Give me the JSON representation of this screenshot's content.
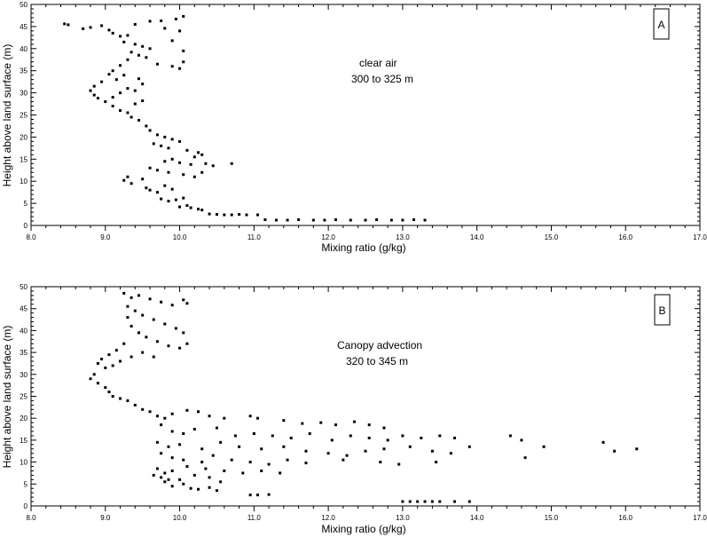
{
  "chart_data": [
    {
      "type": "scatter",
      "panel_label": "A",
      "annotation_lines": [
        "clear air",
        "300 to 325 m"
      ],
      "xlabel": "Mixing ratio (g/kg)",
      "ylabel": "Height above land surface (m)",
      "xlim": [
        8.0,
        17.0
      ],
      "ylim": [
        0,
        50
      ],
      "x_ticks": [
        "8.0",
        "9.0",
        "10.0",
        "11.0",
        "12.0",
        "13.0",
        "14.0",
        "15.0",
        "16.0",
        "17.0"
      ],
      "y_ticks": [
        "0",
        "5",
        "10",
        "15",
        "20",
        "25",
        "30",
        "35",
        "40",
        "45",
        "50"
      ],
      "series": [
        {
          "color": "#000000",
          "points": [
            [
              8.45,
              45.6
            ],
            [
              8.5,
              45.4
            ],
            [
              8.7,
              44.5
            ],
            [
              8.8,
              44.8
            ],
            [
              8.95,
              45.2
            ],
            [
              9.05,
              44.2
            ],
            [
              9.1,
              43.5
            ],
            [
              9.2,
              42.8
            ],
            [
              9.3,
              43.0
            ],
            [
              9.4,
              45.5
            ],
            [
              9.6,
              46.2
            ],
            [
              9.8,
              44.6
            ],
            [
              10.0,
              44.0
            ],
            [
              10.05,
              47.3
            ],
            [
              9.95,
              46.7
            ],
            [
              9.75,
              46.3
            ],
            [
              9.25,
              41.5
            ],
            [
              9.4,
              41.0
            ],
            [
              9.5,
              40.5
            ],
            [
              9.6,
              40.0
            ],
            [
              9.9,
              41.8
            ],
            [
              10.05,
              39.5
            ],
            [
              9.35,
              39.2
            ],
            [
              9.45,
              38.5
            ],
            [
              9.55,
              38.0
            ],
            [
              9.3,
              37.5
            ],
            [
              9.7,
              36.5
            ],
            [
              9.9,
              36.0
            ],
            [
              10.0,
              35.5
            ],
            [
              10.05,
              37.0
            ],
            [
              9.2,
              36.2
            ],
            [
              9.1,
              35.0
            ],
            [
              9.05,
              34.2
            ],
            [
              9.25,
              34.0
            ],
            [
              9.45,
              33.2
            ],
            [
              9.5,
              32.0
            ],
            [
              9.15,
              33.0
            ],
            [
              8.95,
              32.5
            ],
            [
              8.85,
              31.5
            ],
            [
              8.8,
              30.5
            ],
            [
              8.85,
              29.5
            ],
            [
              8.9,
              28.8
            ],
            [
              9.0,
              28.0
            ],
            [
              9.1,
              29.0
            ],
            [
              9.2,
              30.0
            ],
            [
              9.3,
              31.0
            ],
            [
              9.4,
              30.5
            ],
            [
              9.1,
              27.0
            ],
            [
              9.2,
              26.0
            ],
            [
              9.3,
              25.5
            ],
            [
              9.4,
              27.5
            ],
            [
              9.5,
              28.2
            ],
            [
              9.35,
              24.5
            ],
            [
              9.45,
              23.8
            ],
            [
              9.55,
              22.5
            ],
            [
              9.6,
              21.5
            ],
            [
              9.7,
              20.5
            ],
            [
              9.8,
              20.0
            ],
            [
              9.9,
              19.5
            ],
            [
              10.0,
              19.0
            ],
            [
              9.65,
              18.5
            ],
            [
              9.75,
              18.0
            ],
            [
              9.85,
              17.5
            ],
            [
              10.1,
              17.0
            ],
            [
              10.25,
              16.5
            ],
            [
              10.3,
              16.0
            ],
            [
              10.2,
              15.5
            ],
            [
              9.9,
              15.0
            ],
            [
              9.8,
              14.5
            ],
            [
              10.0,
              14.2
            ],
            [
              10.15,
              13.8
            ],
            [
              10.35,
              14.0
            ],
            [
              10.45,
              13.5
            ],
            [
              10.7,
              14.0
            ],
            [
              9.6,
              13.0
            ],
            [
              9.7,
              12.5
            ],
            [
              9.85,
              12.0
            ],
            [
              10.05,
              11.5
            ],
            [
              10.2,
              11.0
            ],
            [
              10.3,
              12.0
            ],
            [
              9.3,
              11.0
            ],
            [
              9.25,
              10.2
            ],
            [
              9.35,
              9.5
            ],
            [
              9.5,
              10.5
            ],
            [
              9.55,
              8.5
            ],
            [
              9.6,
              8.0
            ],
            [
              9.7,
              7.5
            ],
            [
              9.8,
              9.0
            ],
            [
              9.9,
              8.2
            ],
            [
              9.75,
              6.0
            ],
            [
              9.85,
              5.5
            ],
            [
              9.95,
              5.8
            ],
            [
              10.05,
              6.2
            ],
            [
              10.1,
              4.5
            ],
            [
              10.0,
              4.2
            ],
            [
              10.15,
              4.0
            ],
            [
              10.25,
              3.7
            ],
            [
              10.3,
              3.5
            ],
            [
              10.4,
              2.6
            ],
            [
              10.5,
              2.5
            ],
            [
              10.6,
              2.4
            ],
            [
              10.7,
              2.4
            ],
            [
              10.8,
              2.5
            ],
            [
              10.9,
              2.4
            ],
            [
              11.05,
              2.4
            ],
            [
              11.15,
              1.3
            ],
            [
              11.3,
              1.2
            ],
            [
              11.45,
              1.2
            ],
            [
              11.6,
              1.3
            ],
            [
              11.8,
              1.2
            ],
            [
              11.95,
              1.2
            ],
            [
              12.1,
              1.3
            ],
            [
              12.3,
              1.2
            ],
            [
              12.5,
              1.2
            ],
            [
              12.65,
              1.3
            ],
            [
              12.85,
              1.2
            ],
            [
              13.0,
              1.2
            ],
            [
              13.15,
              1.3
            ],
            [
              13.3,
              1.2
            ]
          ]
        }
      ]
    },
    {
      "type": "scatter",
      "panel_label": "B",
      "annotation_lines": [
        "Canopy advection",
        "320 to 345 m"
      ],
      "xlabel": "Mixing ratio (g/kg)",
      "ylabel": "Height above land surface (m)",
      "xlim": [
        8.0,
        17.0
      ],
      "ylim": [
        0,
        50
      ],
      "x_ticks": [
        "8.0",
        "9.0",
        "10.0",
        "11.0",
        "12.0",
        "13.0",
        "14.0",
        "15.0",
        "16.0",
        "17.0"
      ],
      "y_ticks": [
        "0",
        "5",
        "10",
        "15",
        "20",
        "25",
        "30",
        "35",
        "40",
        "45",
        "50"
      ],
      "series": [
        {
          "color": "#000000",
          "points": [
            [
              9.25,
              48.5
            ],
            [
              9.35,
              47.5
            ],
            [
              9.45,
              48.0
            ],
            [
              9.6,
              47.2
            ],
            [
              9.75,
              46.5
            ],
            [
              9.9,
              45.8
            ],
            [
              10.05,
              47.0
            ],
            [
              10.1,
              46.2
            ],
            [
              9.3,
              45.5
            ],
            [
              9.4,
              44.5
            ],
            [
              9.5,
              43.5
            ],
            [
              9.65,
              42.5
            ],
            [
              9.8,
              41.5
            ],
            [
              9.95,
              40.5
            ],
            [
              10.05,
              39.5
            ],
            [
              9.3,
              43.0
            ],
            [
              9.35,
              41.0
            ],
            [
              9.45,
              39.5
            ],
            [
              9.55,
              38.5
            ],
            [
              9.7,
              37.5
            ],
            [
              9.85,
              36.5
            ],
            [
              10.0,
              36.0
            ],
            [
              10.1,
              37.0
            ],
            [
              9.25,
              37.0
            ],
            [
              9.15,
              35.5
            ],
            [
              9.05,
              34.5
            ],
            [
              8.95,
              33.5
            ],
            [
              8.9,
              32.5
            ],
            [
              9.0,
              31.5
            ],
            [
              9.1,
              32.0
            ],
            [
              9.2,
              33.0
            ],
            [
              9.35,
              34.0
            ],
            [
              9.5,
              35.0
            ],
            [
              9.65,
              34.0
            ],
            [
              8.85,
              30.0
            ],
            [
              8.8,
              29.0
            ],
            [
              8.9,
              28.0
            ],
            [
              9.0,
              27.0
            ],
            [
              9.05,
              26.0
            ],
            [
              9.1,
              25.0
            ],
            [
              9.2,
              24.5
            ],
            [
              9.3,
              24.0
            ],
            [
              9.4,
              23.0
            ],
            [
              9.5,
              22.0
            ],
            [
              9.6,
              21.5
            ],
            [
              9.7,
              20.5
            ],
            [
              9.8,
              20.0
            ],
            [
              9.9,
              21.0
            ],
            [
              10.1,
              21.8
            ],
            [
              10.25,
              21.5
            ],
            [
              10.4,
              20.5
            ],
            [
              10.6,
              20.0
            ],
            [
              10.95,
              20.5
            ],
            [
              11.05,
              20.0
            ],
            [
              11.4,
              19.5
            ],
            [
              11.65,
              18.8
            ],
            [
              11.9,
              19.0
            ],
            [
              12.1,
              18.5
            ],
            [
              12.35,
              19.2
            ],
            [
              12.55,
              18.5
            ],
            [
              12.75,
              17.8
            ],
            [
              9.75,
              18.5
            ],
            [
              9.9,
              17.0
            ],
            [
              10.05,
              16.5
            ],
            [
              10.2,
              17.5
            ],
            [
              10.5,
              17.8
            ],
            [
              10.75,
              16.0
            ],
            [
              11.0,
              16.5
            ],
            [
              11.25,
              16.0
            ],
            [
              11.5,
              15.5
            ],
            [
              11.75,
              16.5
            ],
            [
              12.05,
              15.0
            ],
            [
              12.3,
              16.0
            ],
            [
              12.55,
              15.5
            ],
            [
              12.8,
              15.0
            ],
            [
              13.0,
              16.0
            ],
            [
              13.25,
              15.5
            ],
            [
              13.5,
              16.0
            ],
            [
              13.7,
              15.5
            ],
            [
              9.7,
              14.5
            ],
            [
              9.85,
              13.5
            ],
            [
              10.0,
              14.0
            ],
            [
              10.3,
              13.0
            ],
            [
              10.55,
              14.5
            ],
            [
              10.8,
              13.5
            ],
            [
              11.1,
              13.0
            ],
            [
              11.4,
              13.5
            ],
            [
              11.7,
              12.5
            ],
            [
              12.0,
              12.0
            ],
            [
              12.25,
              11.5
            ],
            [
              12.5,
              12.5
            ],
            [
              12.75,
              13.0
            ],
            [
              13.1,
              13.5
            ],
            [
              13.4,
              12.5
            ],
            [
              13.65,
              12.0
            ],
            [
              13.9,
              13.5
            ],
            [
              14.45,
              16.0
            ],
            [
              14.6,
              15.0
            ],
            [
              14.65,
              11.0
            ],
            [
              14.9,
              13.5
            ],
            [
              15.7,
              14.5
            ],
            [
              15.85,
              12.5
            ],
            [
              16.15,
              13.0
            ],
            [
              9.75,
              12.0
            ],
            [
              9.9,
              11.0
            ],
            [
              10.05,
              10.5
            ],
            [
              10.3,
              10.0
            ],
            [
              10.45,
              11.5
            ],
            [
              10.7,
              10.5
            ],
            [
              10.95,
              10.0
            ],
            [
              11.2,
              9.5
            ],
            [
              11.45,
              10.5
            ],
            [
              11.7,
              9.8
            ],
            [
              12.2,
              10.5
            ],
            [
              12.7,
              10.0
            ],
            [
              12.95,
              9.5
            ],
            [
              13.45,
              10.0
            ],
            [
              9.7,
              8.5
            ],
            [
              9.8,
              7.5
            ],
            [
              9.9,
              8.0
            ],
            [
              10.1,
              9.0
            ],
            [
              10.35,
              8.5
            ],
            [
              10.6,
              8.0
            ],
            [
              10.85,
              7.5
            ],
            [
              11.1,
              8.0
            ],
            [
              11.35,
              7.5
            ],
            [
              9.65,
              7.0
            ],
            [
              9.75,
              6.5
            ],
            [
              9.85,
              6.0
            ],
            [
              10.0,
              6.0
            ],
            [
              10.2,
              7.0
            ],
            [
              10.4,
              6.5
            ],
            [
              10.55,
              5.5
            ],
            [
              9.8,
              5.5
            ],
            [
              9.9,
              4.5
            ],
            [
              10.05,
              5.0
            ],
            [
              10.15,
              4.0
            ],
            [
              10.25,
              3.8
            ],
            [
              10.4,
              4.2
            ],
            [
              10.5,
              3.5
            ],
            [
              10.95,
              2.5
            ],
            [
              11.05,
              2.5
            ],
            [
              11.2,
              2.6
            ],
            [
              13.0,
              1.0
            ],
            [
              13.1,
              1.0
            ],
            [
              13.2,
              1.0
            ],
            [
              13.3,
              1.0
            ],
            [
              13.4,
              1.0
            ],
            [
              13.5,
              1.0
            ],
            [
              13.7,
              1.0
            ],
            [
              13.9,
              1.0
            ]
          ]
        }
      ]
    }
  ]
}
